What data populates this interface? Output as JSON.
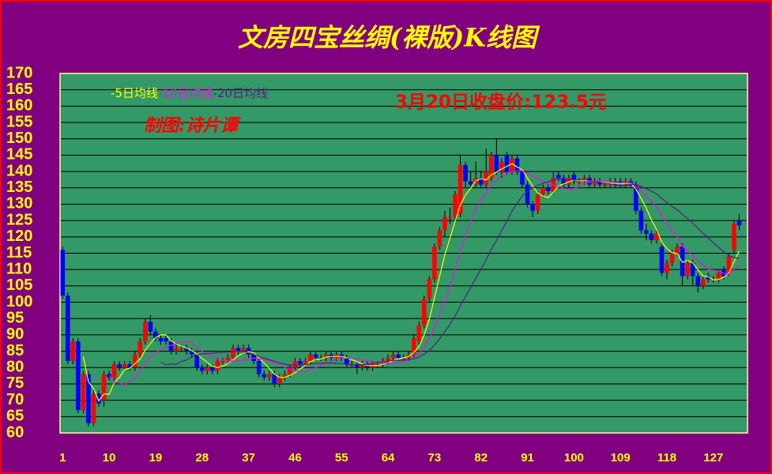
{
  "chart_data": {
    "type": "candlestick",
    "title": "文房四宝丝绸(裸版)K线图",
    "annotations": [
      "3月20日收盘价:123.5元",
      "制图:诗片谭"
    ],
    "up_color": "#ff0000",
    "down_color": "#0000ff",
    "grid": true,
    "ylim": [
      60,
      170
    ],
    "yticks": [
      60,
      65,
      70,
      75,
      80,
      85,
      90,
      95,
      100,
      105,
      110,
      115,
      120,
      125,
      130,
      135,
      140,
      145,
      150,
      155,
      160,
      165,
      170
    ],
    "xlim": [
      0.5,
      133.6
    ],
    "xticks": [
      1,
      10,
      19,
      28,
      37,
      46,
      55,
      64,
      73,
      82,
      91,
      100,
      109,
      118,
      127
    ],
    "x": [
      1,
      2,
      3,
      4,
      5,
      6,
      7,
      8,
      9,
      10,
      11,
      12,
      13,
      14,
      15,
      16,
      17,
      18,
      19,
      20,
      21,
      22,
      23,
      24,
      25,
      26,
      27,
      28,
      29,
      30,
      31,
      32,
      33,
      34,
      35,
      36,
      37,
      38,
      39,
      40,
      41,
      42,
      43,
      44,
      45,
      46,
      47,
      48,
      49,
      50,
      51,
      52,
      53,
      54,
      55,
      56,
      57,
      58,
      59,
      60,
      61,
      62,
      63,
      64,
      65,
      66,
      67,
      68,
      69,
      70,
      71,
      72,
      73,
      74,
      75,
      76,
      77,
      78,
      79,
      80,
      81,
      82,
      83,
      84,
      85,
      86,
      87,
      88,
      89,
      90,
      91,
      92,
      93,
      94,
      95,
      96,
      97,
      98,
      99,
      100,
      101,
      102,
      103,
      104,
      105,
      106,
      107,
      108,
      109,
      110,
      111,
      112,
      113,
      114,
      115,
      116,
      117,
      118,
      119,
      120,
      121,
      122,
      123,
      124,
      125,
      126,
      127,
      128,
      129,
      130,
      131,
      132
    ],
    "candles": [
      [
        116,
        117,
        101,
        102
      ],
      [
        102,
        103,
        81,
        82
      ],
      [
        82,
        89,
        81,
        88
      ],
      [
        88,
        89,
        66,
        67
      ],
      [
        67,
        79,
        66,
        78
      ],
      [
        78,
        79,
        62,
        63
      ],
      [
        63,
        73,
        62,
        72
      ],
      [
        72,
        73,
        68,
        69
      ],
      [
        70,
        79,
        68,
        78
      ],
      [
        78,
        79,
        76,
        77
      ],
      [
        77,
        82,
        76,
        81
      ],
      [
        81,
        82,
        79,
        80
      ],
      [
        80,
        82,
        79,
        81
      ],
      [
        81,
        82,
        79,
        80
      ],
      [
        80,
        85,
        79,
        84
      ],
      [
        84,
        89,
        83,
        88
      ],
      [
        88,
        95,
        87,
        94
      ],
      [
        94,
        96,
        90,
        91
      ],
      [
        91,
        92,
        88,
        89
      ],
      [
        89,
        90,
        87,
        88
      ],
      [
        89,
        90,
        87,
        88
      ],
      [
        88,
        89,
        84,
        85
      ],
      [
        85,
        87,
        84,
        86
      ],
      [
        86,
        87,
        85,
        86
      ],
      [
        86,
        87,
        84,
        85
      ],
      [
        85,
        86,
        83,
        84
      ],
      [
        84,
        85,
        79,
        80
      ],
      [
        80,
        81,
        78,
        79
      ],
      [
        79,
        81,
        78,
        80
      ],
      [
        80,
        81,
        78,
        79
      ],
      [
        79,
        83,
        78,
        82
      ],
      [
        82,
        83,
        81,
        82
      ],
      [
        82,
        84,
        81,
        83
      ],
      [
        83,
        87,
        82,
        86
      ],
      [
        86,
        87,
        84,
        85
      ],
      [
        85,
        87,
        84,
        86
      ],
      [
        86,
        87,
        83,
        84
      ],
      [
        84,
        85,
        81,
        82
      ],
      [
        82,
        83,
        77,
        78
      ],
      [
        78,
        79,
        76,
        77
      ],
      [
        77,
        79,
        76,
        78
      ],
      [
        78,
        79,
        74,
        75
      ],
      [
        75,
        78,
        74,
        77
      ],
      [
        77,
        79,
        76,
        78
      ],
      [
        78,
        81,
        77,
        80
      ],
      [
        80,
        83,
        79,
        82
      ],
      [
        82,
        83,
        80,
        81
      ],
      [
        81,
        83,
        80,
        82
      ],
      [
        82,
        85,
        81,
        84
      ],
      [
        84,
        85,
        82,
        83
      ],
      [
        83,
        84,
        82,
        83
      ],
      [
        83,
        85,
        82,
        84
      ],
      [
        84,
        85,
        82,
        83
      ],
      [
        83,
        85,
        82,
        84
      ],
      [
        84,
        85,
        82,
        83
      ],
      [
        83,
        84,
        80,
        81
      ],
      [
        81,
        82,
        80,
        81
      ],
      [
        81,
        82,
        78,
        80
      ],
      [
        80,
        82,
        79,
        81
      ],
      [
        81,
        82,
        79,
        80
      ],
      [
        80,
        82,
        79,
        81
      ],
      [
        81,
        82,
        80,
        81
      ],
      [
        81,
        83,
        80,
        82
      ],
      [
        82,
        84,
        81,
        83
      ],
      [
        83,
        85,
        82,
        84
      ],
      [
        84,
        85,
        82,
        83
      ],
      [
        83,
        84,
        82,
        83
      ],
      [
        83,
        85,
        82,
        84
      ],
      [
        84,
        90,
        83,
        89
      ],
      [
        88,
        94,
        87,
        93
      ],
      [
        93,
        102,
        92,
        101
      ],
      [
        101,
        108,
        100,
        107
      ],
      [
        107,
        118,
        106,
        117
      ],
      [
        117,
        123,
        116,
        122
      ],
      [
        122,
        128,
        120,
        126
      ],
      [
        126,
        129,
        124,
        126
      ],
      [
        126,
        134,
        125,
        133
      ],
      [
        127,
        145,
        126,
        142
      ],
      [
        142,
        143,
        135,
        137
      ],
      [
        137,
        140,
        135,
        136
      ],
      [
        136,
        143,
        135,
        138
      ],
      [
        138,
        140,
        135,
        136
      ],
      [
        136,
        147,
        135,
        140
      ],
      [
        138,
        146,
        137,
        145
      ],
      [
        145,
        150,
        139,
        140
      ],
      [
        140,
        144,
        138,
        143
      ],
      [
        145,
        146,
        139,
        140
      ],
      [
        140,
        145,
        139,
        144
      ],
      [
        144,
        145,
        139,
        140
      ],
      [
        140,
        141,
        135,
        136
      ],
      [
        136,
        137,
        129,
        130
      ],
      [
        130,
        131,
        126,
        128
      ],
      [
        128,
        134,
        127,
        133
      ],
      [
        133,
        136,
        132,
        135
      ],
      [
        135,
        136,
        133,
        134
      ],
      [
        134,
        140,
        133,
        138
      ],
      [
        139,
        140,
        137,
        138
      ],
      [
        138,
        139,
        135,
        136
      ],
      [
        136,
        139,
        135,
        138
      ],
      [
        139,
        140,
        136,
        137
      ],
      [
        137,
        138,
        136,
        137
      ],
      [
        137,
        139,
        136,
        138
      ],
      [
        138,
        139,
        135,
        136
      ],
      [
        136,
        138,
        135,
        137
      ],
      [
        137,
        138,
        135,
        136
      ],
      [
        136,
        137,
        135,
        136
      ],
      [
        136,
        138,
        135,
        137
      ],
      [
        137,
        138,
        135,
        136
      ],
      [
        137,
        138,
        135,
        136
      ],
      [
        136,
        138,
        135,
        137
      ],
      [
        137,
        138,
        135,
        136
      ],
      [
        136,
        137,
        127,
        128
      ],
      [
        128,
        129,
        121,
        122
      ],
      [
        122,
        124,
        119,
        121
      ],
      [
        121,
        122,
        118,
        119
      ],
      [
        119,
        122,
        118,
        121
      ],
      [
        117,
        118,
        108,
        109
      ],
      [
        109,
        113,
        107,
        112
      ],
      [
        112,
        116,
        111,
        115
      ],
      [
        115,
        118,
        114,
        117
      ],
      [
        117,
        118,
        105,
        108
      ],
      [
        108,
        113,
        107,
        112
      ],
      [
        112,
        113,
        105,
        108
      ],
      [
        108,
        109,
        103,
        105
      ],
      [
        105,
        108,
        104,
        107
      ],
      [
        108,
        109,
        106,
        107
      ],
      [
        107,
        108,
        106,
        107
      ],
      [
        107,
        110,
        106,
        109
      ],
      [
        110,
        111,
        107,
        108
      ],
      [
        109,
        115,
        108,
        114
      ],
      [
        116,
        125,
        115,
        124
      ],
      [
        125,
        127,
        122,
        123.5
      ]
    ],
    "series": [
      {
        "name": "-5日均线",
        "color": "#ffff00",
        "values": [
          null,
          null,
          null,
          null,
          83.4,
          75.6,
          73.6,
          69.8,
          72,
          71.8,
          75.4,
          77,
          79.4,
          79.8,
          81.2,
          82.6,
          85.4,
          87.4,
          89.2,
          90,
          90,
          88.2,
          87.2,
          86.6,
          86,
          85.2,
          84.2,
          82.8,
          81.6,
          80.4,
          80,
          80.4,
          81.2,
          82.4,
          83.6,
          84.4,
          84.8,
          84.6,
          83,
          81.4,
          79.8,
          78,
          77,
          77,
          77.6,
          78.4,
          79.6,
          80.6,
          81.8,
          82.4,
          82.6,
          83.2,
          83.4,
          83.4,
          83.4,
          83,
          82.4,
          81.8,
          81.2,
          80.6,
          80.6,
          80.6,
          81,
          81.4,
          82.2,
          82.6,
          83,
          83.4,
          84.6,
          86.4,
          90,
          94.8,
          101.4,
          108,
          114.6,
          119.6,
          124.8,
          129.8,
          132.8,
          134.8,
          137.2,
          137.8,
          137.4,
          139,
          139.8,
          140.8,
          141.6,
          142.4,
          141.4,
          140.6,
          138,
          135.6,
          133.4,
          132.4,
          132,
          133.6,
          135.6,
          136.2,
          136.8,
          137.4,
          137.2,
          137.2,
          137.2,
          137,
          136.8,
          136.6,
          136.4,
          136.4,
          136.2,
          136.4,
          136.4,
          134.6,
          131.8,
          128.8,
          125.2,
          122.2,
          118.4,
          116.4,
          115.2,
          114.8,
          112.2,
          112.8,
          112,
          110,
          108,
          107.8,
          106.8,
          107,
          107.6,
          109,
          112.4,
          115.7
        ]
      },
      {
        "name": "-10日均线",
        "color": "#ff00ff",
        "values": [
          null,
          null,
          null,
          null,
          null,
          null,
          null,
          null,
          null,
          77.6,
          75.5,
          75.3,
          74.6,
          75.9,
          76.5,
          79,
          81.2,
          83.4,
          84.5,
          85.6,
          86.3,
          86.8,
          87.3,
          87.9,
          88,
          87.6,
          86.2,
          85,
          84.1,
          83.2,
          82.6,
          82.3,
          82,
          82,
          82,
          82.2,
          82.6,
          82.9,
          82.7,
          82.5,
          82.1,
          81.4,
          80.8,
          80,
          79.5,
          79.1,
          78.8,
          78.8,
          79.4,
          80,
          80.5,
          81.4,
          82,
          82.6,
          82.9,
          82.8,
          82.8,
          82.6,
          82.3,
          82,
          81.8,
          81.5,
          81.4,
          81.3,
          81.4,
          81.6,
          81.8,
          82.2,
          83,
          84.3,
          86.3,
          88.9,
          92.4,
          96.3,
          100.5,
          104.8,
          109.8,
          115.6,
          120.4,
          124.7,
          128.4,
          131.3,
          133.6,
          135.9,
          137.3,
          139,
          139.7,
          139.9,
          140.2,
          140.2,
          139.4,
          138.6,
          137.9,
          136.9,
          136.3,
          135.8,
          135.6,
          134.8,
          134.6,
          134.7,
          135.4,
          136.4,
          136.7,
          136.9,
          137.1,
          136.9,
          136.8,
          136.8,
          136.6,
          136.6,
          136.5,
          135.5,
          134.1,
          132.5,
          130.8,
          129.3,
          126.5,
          124.1,
          122,
          120,
          117.2,
          115.6,
          114.2,
          112.6,
          111.4,
          110,
          109.8,
          109.5,
          108.8,
          108.5,
          110.1,
          111.3
        ]
      },
      {
        "name": "-20日均线",
        "color": "#5a1a8a",
        "values": [
          null,
          null,
          null,
          null,
          null,
          null,
          null,
          null,
          null,
          null,
          null,
          null,
          null,
          null,
          null,
          null,
          null,
          null,
          null,
          81.6,
          80.9,
          81.1,
          81,
          81.9,
          82.3,
          83.3,
          83.7,
          84.2,
          84.3,
          84.4,
          84.5,
          84.6,
          84.7,
          85,
          85,
          84.9,
          84.4,
          84,
          83.4,
          82.9,
          82.4,
          81.9,
          81.4,
          81,
          80.8,
          80.7,
          80.7,
          80.9,
          81.1,
          81.3,
          81.3,
          81.4,
          81.4,
          81.3,
          81.2,
          81,
          80.8,
          80.7,
          80.9,
          81,
          81.2,
          81.5,
          81.7,
          82,
          82.2,
          82.2,
          82.3,
          82.4,
          82.7,
          83.2,
          84.1,
          85.2,
          86.9,
          88.8,
          91,
          93.2,
          95.8,
          98.9,
          101.7,
          104.5,
          107.4,
          110.1,
          113,
          116.1,
          118.9,
          121.9,
          124.8,
          127.8,
          130.3,
          132.5,
          133.9,
          135,
          135.8,
          136.4,
          136.8,
          137.4,
          137.7,
          137.4,
          137.4,
          137.5,
          137.4,
          137.5,
          137.3,
          136.9,
          136.7,
          136.4,
          136.2,
          135.8,
          135.6,
          135.7,
          136,
          136,
          135.4,
          134.7,
          134,
          133.1,
          131.7,
          130.5,
          129.3,
          128.3,
          126.9,
          125.6,
          124.2,
          122.6,
          121.1,
          119.7,
          118.2,
          116.8,
          115.4,
          114.3,
          113.7,
          113.4
        ]
      }
    ]
  }
}
